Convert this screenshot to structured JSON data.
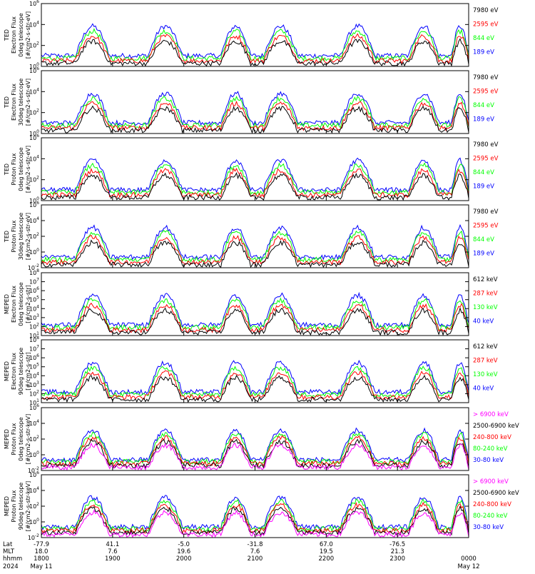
{
  "colors": {
    "black": "#000000",
    "red": "#ff0000",
    "green": "#00ff00",
    "blue": "#0000ff",
    "magenta": "#ff00ff"
  },
  "chart_data": [
    {
      "type": "line",
      "ylabel_lines": [
        "TED",
        "Electron Flux",
        "0deg telescope",
        "[#/cm2-s-str-eV]"
      ],
      "y_log_range": [
        0,
        6
      ],
      "y_tick_exps": [
        0,
        2,
        4,
        6
      ],
      "series": [
        {
          "name": "7980 eV",
          "color": "#000000"
        },
        {
          "name": "2595 eV",
          "color": "#ff0000"
        },
        {
          "name": "844 eV",
          "color": "#00ff00"
        },
        {
          "name": "189 eV",
          "color": "#0000ff"
        }
      ]
    },
    {
      "type": "line",
      "ylabel_lines": [
        "TED",
        "Electron Flux",
        "30deg telescope",
        "[#/cm2-s-str-eV]"
      ],
      "y_log_range": [
        0,
        6
      ],
      "y_tick_exps": [
        0,
        2,
        4,
        6
      ],
      "series": [
        {
          "name": "7980 eV",
          "color": "#000000"
        },
        {
          "name": "2595 eV",
          "color": "#ff0000"
        },
        {
          "name": "844 eV",
          "color": "#00ff00"
        },
        {
          "name": "189 eV",
          "color": "#0000ff"
        }
      ]
    },
    {
      "type": "line",
      "ylabel_lines": [
        "TED",
        "Proton Flux",
        "0deg telescope",
        "[#/cm2-s-str-eV]"
      ],
      "y_log_range": [
        0,
        6
      ],
      "y_tick_exps": [
        0,
        2,
        4,
        6
      ],
      "series": [
        {
          "name": "7980 eV",
          "color": "#000000"
        },
        {
          "name": "2595 eV",
          "color": "#ff0000"
        },
        {
          "name": "844 eV",
          "color": "#00ff00"
        },
        {
          "name": "189 eV",
          "color": "#0000ff"
        }
      ]
    },
    {
      "type": "line",
      "ylabel_lines": [
        "TED",
        "Proton Flux",
        "30deg telescope",
        "[#/cm2-s-str-eV]"
      ],
      "y_log_range": [
        -2,
        6
      ],
      "y_tick_exps": [
        -2,
        0,
        2,
        4,
        6
      ],
      "series": [
        {
          "name": "7980 eV",
          "color": "#000000"
        },
        {
          "name": "2595 eV",
          "color": "#ff0000"
        },
        {
          "name": "844 eV",
          "color": "#00ff00"
        },
        {
          "name": "189 eV",
          "color": "#0000ff"
        }
      ]
    },
    {
      "type": "line",
      "ylabel_lines": [
        "MEPED",
        "Electron Flux",
        "0deg telescope",
        "[#/cm2-s-str]"
      ],
      "y_log_range": [
        1,
        8
      ],
      "y_tick_exps": [
        1,
        2,
        3,
        4,
        5,
        6,
        7,
        8
      ],
      "series": [
        {
          "name": "612 keV",
          "color": "#000000"
        },
        {
          "name": "287 keV",
          "color": "#ff0000"
        },
        {
          "name": "130 keV",
          "color": "#00ff00"
        },
        {
          "name": "40 keV",
          "color": "#0000ff"
        }
      ]
    },
    {
      "type": "line",
      "ylabel_lines": [
        "MEPED",
        "Electron Flux",
        "90deg telescope",
        "[#/cm2-s-str]"
      ],
      "y_log_range": [
        1,
        8
      ],
      "y_tick_exps": [
        1,
        2,
        3,
        4,
        5,
        6,
        7,
        8
      ],
      "series": [
        {
          "name": "612 keV",
          "color": "#000000"
        },
        {
          "name": "287 keV",
          "color": "#ff0000"
        },
        {
          "name": "130 keV",
          "color": "#00ff00"
        },
        {
          "name": "40 keV",
          "color": "#0000ff"
        }
      ]
    },
    {
      "type": "line",
      "ylabel_lines": [
        "MEPED",
        "Proton Flux",
        "0deg telescope",
        "[#/cm2-s-str-keV]"
      ],
      "y_log_range": [
        -2,
        6
      ],
      "y_tick_exps": [
        -2,
        0,
        2,
        4,
        6
      ],
      "series": [
        {
          "name": "> 6900 keV",
          "color": "#ff00ff"
        },
        {
          "name": "2500-6900 keV",
          "color": "#000000"
        },
        {
          "name": "240-800 keV",
          "color": "#ff0000"
        },
        {
          "name": "80-240 keV",
          "color": "#00ff00"
        },
        {
          "name": "30-80 keV",
          "color": "#0000ff"
        }
      ]
    },
    {
      "type": "line",
      "ylabel_lines": [
        "MEPED",
        "Proton Flux",
        "90deg telescope",
        "[#/cm2-s-str-keV]"
      ],
      "y_log_range": [
        -2,
        6
      ],
      "y_tick_exps": [
        -2,
        0,
        2,
        4,
        6
      ],
      "series": [
        {
          "name": "> 6900 keV",
          "color": "#ff00ff"
        },
        {
          "name": "2500-6900 keV",
          "color": "#000000"
        },
        {
          "name": "240-800 keV",
          "color": "#ff0000"
        },
        {
          "name": "80-240 keV",
          "color": "#00ff00"
        },
        {
          "name": "30-80 keV",
          "color": "#0000ff"
        }
      ]
    }
  ],
  "x_axis": {
    "row_labels": [
      "Lat",
      "MLT",
      "hhmm",
      "2024"
    ],
    "ticks": [
      {
        "hhmm": "1800",
        "lat": "-77.9",
        "mlt": "18.0",
        "date": "May 11"
      },
      {
        "hhmm": "1900",
        "lat": "41.1",
        "mlt": "7.6",
        "date": ""
      },
      {
        "hhmm": "2000",
        "lat": "-5.0",
        "mlt": "19.6",
        "date": ""
      },
      {
        "hhmm": "2100",
        "lat": "-31.8",
        "mlt": "7.6",
        "date": ""
      },
      {
        "hhmm": "2200",
        "lat": "67.0",
        "mlt": "19.5",
        "date": ""
      },
      {
        "hhmm": "2300",
        "lat": "-76.5",
        "mlt": "21.3",
        "date": ""
      },
      {
        "hhmm": "0000",
        "lat": "",
        "mlt": "",
        "date": "May 12"
      }
    ]
  }
}
